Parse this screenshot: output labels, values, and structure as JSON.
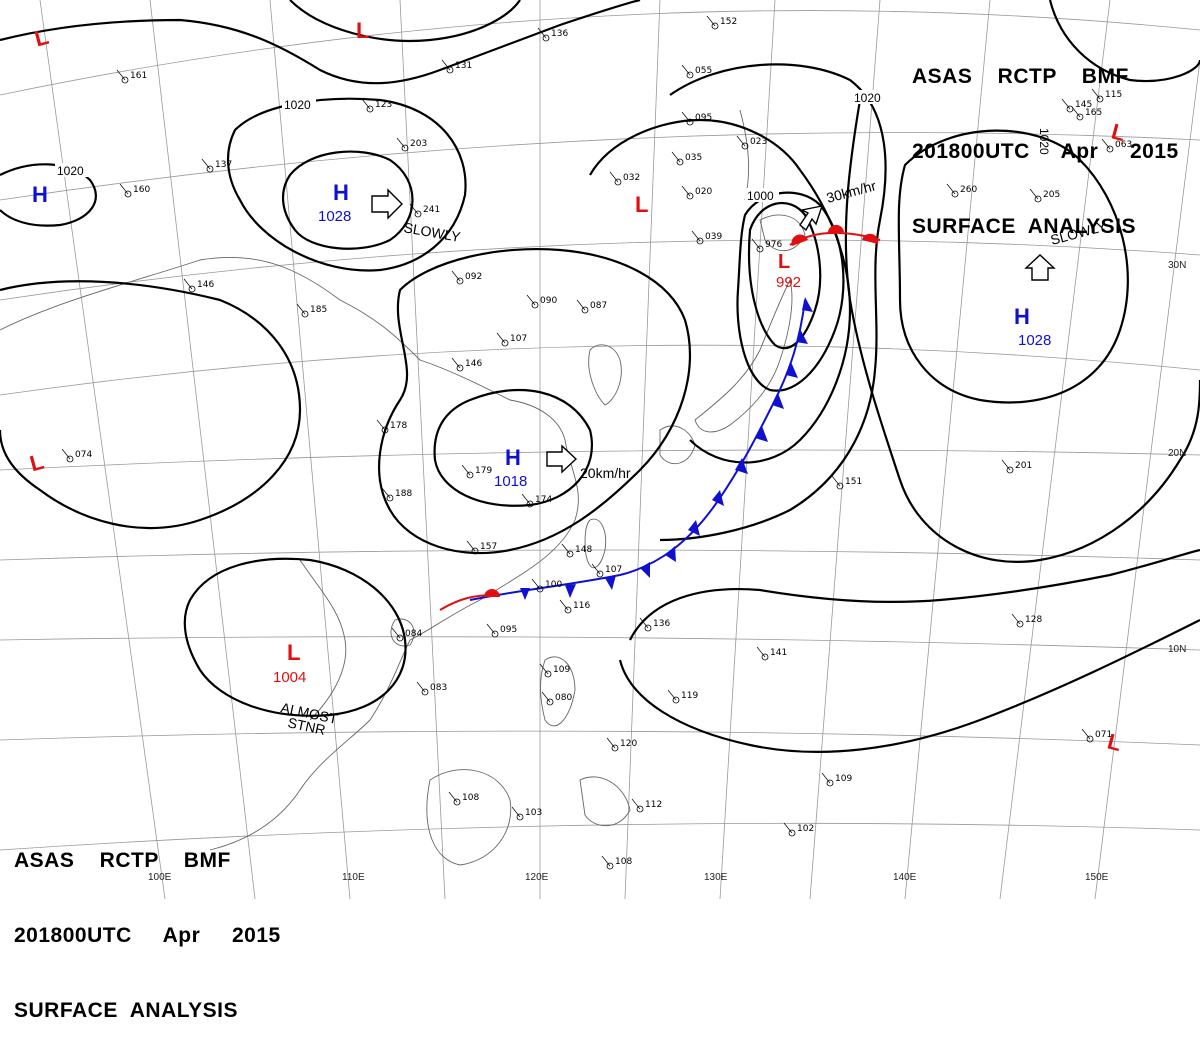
{
  "header": {
    "line1": "ASAS    RCTP    BMF",
    "line2": "201800UTC     Apr     2015",
    "line3": "SURFACE  ANALYSIS"
  },
  "footer": {
    "line1": "ASAS    RCTP    BMF",
    "line2": "201800UTC     Apr     2015",
    "line3": "SURFACE  ANALYSIS"
  },
  "colors": {
    "high": "#1010d0",
    "low": "#e01010",
    "isobar": "#000000",
    "grid": "#888888",
    "coast": "#555555"
  },
  "pressure_centers": [
    {
      "type": "H",
      "value": "1028",
      "color": "#1010d0"
    },
    {
      "type": "H",
      "value": "1028",
      "color": "#1010d0"
    },
    {
      "type": "H",
      "value": "1018",
      "color": "#1010d0"
    },
    {
      "type": "H",
      "value": "",
      "color": "#1010d0"
    },
    {
      "type": "L",
      "value": "992",
      "color": "#e01010"
    },
    {
      "type": "L",
      "value": "1004",
      "color": "#e01010"
    },
    {
      "type": "L",
      "value": "",
      "color": "#e01010"
    },
    {
      "type": "L",
      "value": "",
      "color": "#e01010"
    },
    {
      "type": "L",
      "value": "",
      "color": "#e01010"
    },
    {
      "type": "L",
      "value": "",
      "color": "#e01010"
    },
    {
      "type": "L",
      "value": "",
      "color": "#e01010"
    }
  ],
  "isobar_labels": [
    "1020",
    "1020",
    "1020",
    "1000",
    "1020"
  ],
  "movement_labels": [
    "SLOWLY",
    "SLOWLY",
    "30km/hr",
    "20km/hr",
    "ALMOST",
    "STNR"
  ],
  "lon_labels": [
    "110E",
    "120E",
    "130E",
    "140E",
    "150E",
    "100E"
  ],
  "lat_labels": [
    "30N",
    "20N",
    "10N"
  ],
  "stations": [
    "161",
    "160",
    "185",
    "146",
    "137",
    "203",
    "241",
    "131",
    "123",
    "136",
    "152",
    "055",
    "095",
    "023",
    "032",
    "035",
    "020",
    "039",
    "976",
    "092",
    "090",
    "087",
    "107",
    "146",
    "178",
    "174",
    "179",
    "188",
    "157",
    "148",
    "107",
    "100",
    "116",
    "095",
    "084",
    "083",
    "109",
    "080",
    "120",
    "108",
    "103",
    "136",
    "119",
    "112",
    "102",
    "108",
    "260",
    "205",
    "201",
    "151",
    "141",
    "128",
    "071",
    "109",
    "074",
    "145",
    "165",
    "115",
    "063"
  ]
}
